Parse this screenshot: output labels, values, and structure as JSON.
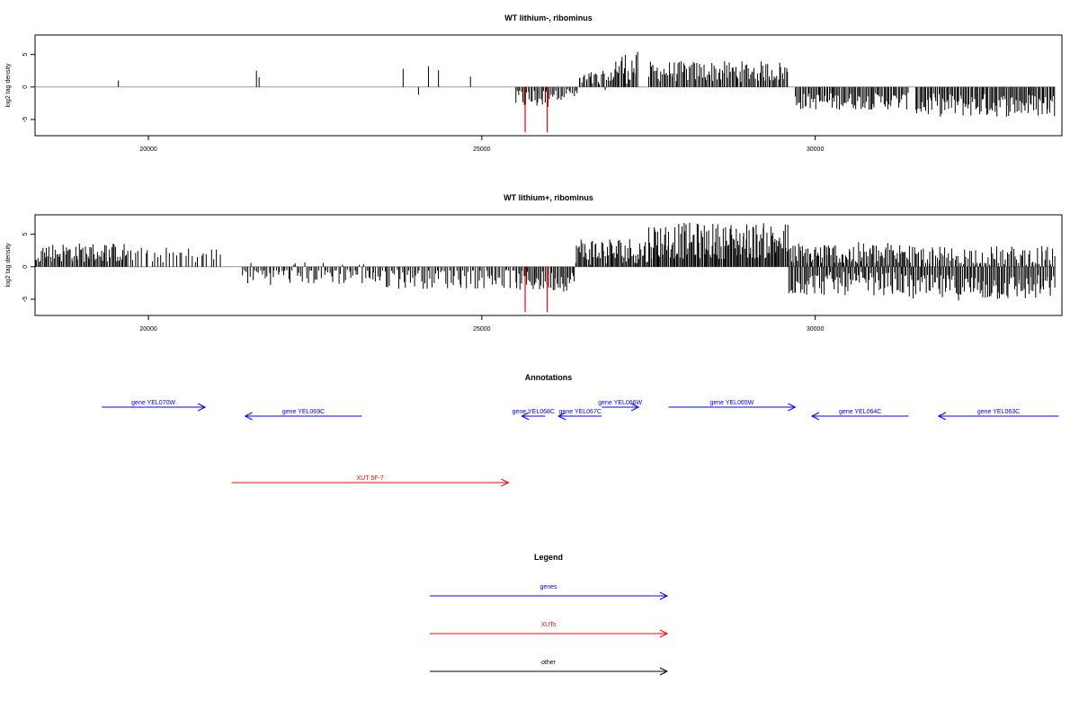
{
  "colors": {
    "gene": "#0000ff",
    "xut": "#ff0000",
    "other": "#000000",
    "signal": "#000000",
    "baseline": "#999999",
    "highlight": "#ff0000"
  },
  "chart_data": [
    {
      "type": "bar",
      "title": "WT lithium-, ribominus",
      "xlabel": "",
      "ylabel": "log2 tag density",
      "xlim": [
        18300,
        33700
      ],
      "ylim": [
        -7.5,
        8
      ],
      "xticks": [
        20000,
        25000,
        30000
      ],
      "xtick_labels": [
        "20000",
        "25000",
        "30000"
      ],
      "yticks": [
        -5,
        0,
        5
      ],
      "ytick_labels": [
        "-5",
        "0",
        "5"
      ],
      "baseline_range": [
        18300,
        33600
      ],
      "highlight_x": [
        25650,
        25980
      ],
      "highlight_values": [
        -7,
        -7
      ],
      "sparse_bars": {
        "x": [
          19550,
          21620,
          21660,
          23820,
          24050,
          24200,
          24350,
          24830
        ],
        "values": [
          1.0,
          2.5,
          1.5,
          2.8,
          -1.2,
          3.2,
          2.6,
          1.6
        ]
      },
      "segments": [
        {
          "x0": 25500,
          "x1": 26000,
          "n": 24,
          "mean": -1.8,
          "amp": 1.6
        },
        {
          "x0": 26000,
          "x1": 26450,
          "n": 18,
          "mean": -1.0,
          "amp": 1.0
        },
        {
          "x0": 26450,
          "x1": 26950,
          "n": 24,
          "mean": 1.0,
          "amp": 1.5
        },
        {
          "x0": 26950,
          "x1": 27350,
          "n": 22,
          "mean": 3.0,
          "amp": 2.5
        },
        {
          "x0": 27500,
          "x1": 29600,
          "n": 105,
          "mean": 2.4,
          "amp": 1.6
        },
        {
          "x0": 29700,
          "x1": 31400,
          "n": 85,
          "mean": -2.2,
          "amp": 1.3
        },
        {
          "x0": 31500,
          "x1": 33600,
          "n": 110,
          "mean": -2.8,
          "amp": 1.8
        }
      ]
    },
    {
      "type": "bar",
      "title": "WT lithium+, ribominus",
      "xlabel": "",
      "ylabel": "log2 tag density",
      "xlim": [
        18300,
        33700
      ],
      "ylim": [
        -7.5,
        8
      ],
      "xticks": [
        20000,
        25000,
        30000
      ],
      "xtick_labels": [
        "20000",
        "25000",
        "30000"
      ],
      "yticks": [
        -5,
        0,
        5
      ],
      "ytick_labels": [
        "-5",
        "0",
        "5"
      ],
      "baseline_range": [
        18300,
        33600
      ],
      "highlight_x": [
        25650,
        25980
      ],
      "highlight_values": [
        -7,
        -7
      ],
      "sparse_bars": {
        "x": [],
        "values": []
      },
      "segments": [
        {
          "x0": 18300,
          "x1": 19700,
          "n": 75,
          "mean": 2.2,
          "amp": 1.5
        },
        {
          "x0": 19700,
          "x1": 21100,
          "n": 30,
          "mean": 1.8,
          "amp": 1.2
        },
        {
          "x0": 21400,
          "x1": 23400,
          "n": 75,
          "mean": -1.0,
          "amp": 1.8
        },
        {
          "x0": 23400,
          "x1": 25500,
          "n": 80,
          "mean": -1.6,
          "amp": 1.8
        },
        {
          "x0": 25500,
          "x1": 26400,
          "n": 45,
          "mean": -2.2,
          "amp": 1.6
        },
        {
          "x0": 26400,
          "x1": 27500,
          "n": 65,
          "mean": 2.4,
          "amp": 2.2
        },
        {
          "x0": 27500,
          "x1": 29600,
          "n": 140,
          "mean": 4.0,
          "amp": 2.8
        },
        {
          "x0": 29600,
          "x1": 31400,
          "n": 100,
          "mean": 1.8,
          "amp": 2.0
        },
        {
          "x0": 29600,
          "x1": 31400,
          "n": 90,
          "mean": -2.6,
          "amp": 1.8
        },
        {
          "x0": 31400,
          "x1": 33600,
          "n": 90,
          "mean": 1.6,
          "amp": 1.6
        },
        {
          "x0": 31400,
          "x1": 33600,
          "n": 110,
          "mean": -3.2,
          "amp": 2.0
        }
      ]
    }
  ],
  "annotations": {
    "title": "Annotations",
    "xlim": [
      18300,
      33700
    ],
    "genes": [
      {
        "label": "gene YEL070W",
        "start": 19300,
        "end": 20850,
        "strand": "+",
        "level": 0
      },
      {
        "label": "gene YEL069C",
        "start": 21450,
        "end": 23200,
        "strand": "-",
        "level": 1
      },
      {
        "label": "gene YEL068C",
        "start": 25600,
        "end": 25950,
        "strand": "-",
        "level": 1
      },
      {
        "label": "gene YEL067C",
        "start": 26150,
        "end": 26800,
        "strand": "-",
        "level": 1
      },
      {
        "label": "gene YEL066W",
        "start": 26800,
        "end": 27350,
        "strand": "+",
        "level": 0
      },
      {
        "label": "gene YEL065W",
        "start": 27800,
        "end": 29700,
        "strand": "+",
        "level": 0
      },
      {
        "label": "gene YEL064C",
        "start": 29950,
        "end": 31400,
        "strand": "-",
        "level": 1
      },
      {
        "label": "gene YEL063C",
        "start": 31850,
        "end": 33650,
        "strand": "-",
        "level": 1
      }
    ],
    "xuts": [
      {
        "label": "XUT 5F-7",
        "start": 21250,
        "end": 25400,
        "strand": "+"
      }
    ]
  },
  "legend": {
    "title": "Legend",
    "items": [
      {
        "label": "genes",
        "color": "#0000ff"
      },
      {
        "label": "XUTs",
        "color": "#ff0000"
      },
      {
        "label": "other",
        "color": "#000000"
      }
    ]
  }
}
